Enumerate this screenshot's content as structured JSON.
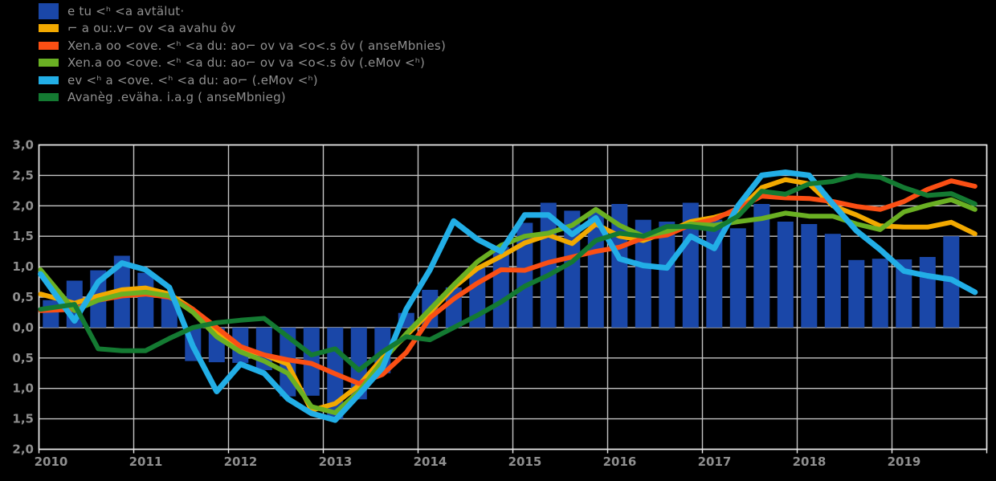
{
  "legend": {
    "items": [
      {
        "label": "e tu <ʰ <a avtälut·",
        "color": "#1a47a8",
        "swatch": "bar"
      },
      {
        "label": "⌐ a ou:.v⌐ ov <a avahu ôv",
        "color": "#f2a900",
        "swatch": "line"
      },
      {
        "label": "Xen.a oo <ove. <ʰ <a du: ao⌐ ov va <o<.s ôv ( anseMbnies)",
        "color": "#fb4f14",
        "swatch": "line"
      },
      {
        "label": "Xen.a oo <ove. <ʰ <a du: ao⌐ ov va <o<.s ôv (.eMov <ʰ)",
        "color": "#6ab023",
        "swatch": "line"
      },
      {
        "label": "ev <ʰ a <ove. <ʰ <a du: ao⌐ (.eMov <ʰ)",
        "color": "#22aee6",
        "swatch": "line"
      },
      {
        "label": "Avanèg .eväha. i.a.g ( anseMbnieg)",
        "color": "#147a32",
        "swatch": "line"
      }
    ]
  },
  "chart_data": {
    "type": "bar+line combo",
    "title": "",
    "xlabel": "",
    "ylabel": "",
    "ylim": [
      -2.0,
      3.0
    ],
    "ytick_step": 0.5,
    "ytick_labels": [
      "3,0",
      "2,5",
      "2,0",
      "1,5",
      "1,0",
      "0,5",
      "0,0",
      "0,5",
      "1,0",
      "1,5",
      "2,0"
    ],
    "x_year_labels": [
      "2010",
      "2011",
      "2012",
      "2013",
      "2014",
      "2015",
      "2016",
      "2017",
      "2018",
      "2019"
    ],
    "grid": true,
    "grid_color": "#c4c4c4",
    "frame_color": "#e9e9e9",
    "background": "#000000",
    "quarters": [
      "2010 Q1",
      "2010 Q2",
      "2010 Q3",
      "2010 Q4",
      "2011 Q1",
      "2011 Q2",
      "2011 Q3",
      "2011 Q4",
      "2012 Q1",
      "2012 Q2",
      "2012 Q3",
      "2012 Q4",
      "2013 Q1",
      "2013 Q2",
      "2013 Q3",
      "2013 Q4",
      "2014 Q1",
      "2014 Q2",
      "2014 Q3",
      "2014 Q4",
      "2015 Q1",
      "2015 Q2",
      "2015 Q3",
      "2015 Q4",
      "2016 Q1",
      "2016 Q2",
      "2016 Q3",
      "2016 Q4",
      "2017 Q1",
      "2017 Q2",
      "2017 Q3",
      "2017 Q4",
      "2018 Q1",
      "2018 Q2",
      "2018 Q3",
      "2018 Q4",
      "2019 Q1",
      "2019 Q2",
      "2019 Q3",
      "2019 Q4"
    ],
    "bars": {
      "name": "e tu <ʰ <a avtälut·",
      "color": "#1a47a8",
      "values": [
        0.45,
        0.77,
        0.94,
        1.18,
        0.9,
        0.5,
        -0.55,
        -0.57,
        -0.58,
        -0.7,
        -1.13,
        -1.12,
        -1.5,
        -1.18,
        -0.75,
        0.24,
        0.62,
        0.66,
        0.99,
        1.32,
        1.72,
        2.05,
        1.92,
        1.9,
        2.03,
        1.77,
        1.74,
        2.05,
        1.77,
        1.63,
        2.03,
        1.74,
        1.7,
        1.54,
        1.11,
        1.13,
        1.12,
        1.16,
        1.5,
        null
      ]
    },
    "series": [
      {
        "name": "⌐ a ou:.v⌐ ov <a avahu ôv",
        "color": "#f2a900",
        "width": 6,
        "values": [
          0.55,
          0.4,
          0.52,
          0.62,
          0.65,
          0.55,
          0.3,
          -0.1,
          -0.35,
          -0.45,
          -0.6,
          -1.36,
          -1.25,
          -0.95,
          -0.5,
          -0.13,
          0.25,
          0.66,
          0.97,
          1.17,
          1.39,
          1.52,
          1.38,
          1.7,
          1.5,
          1.43,
          1.57,
          1.74,
          1.81,
          1.92,
          2.3,
          2.43,
          2.36,
          2.0,
          1.85,
          1.67,
          1.65,
          1.65,
          1.73,
          1.54
        ]
      },
      {
        "name": "Xen.a oo <ove. <ʰ <a du: ao⌐ ov va <o<.s ôv ( anseMbnies)",
        "color": "#fb4f14",
        "width": 6,
        "values": [
          0.28,
          0.3,
          0.45,
          0.52,
          0.55,
          0.5,
          0.3,
          0.0,
          -0.31,
          -0.45,
          -0.53,
          -0.59,
          -0.76,
          -0.92,
          -0.77,
          -0.41,
          0.16,
          0.47,
          0.73,
          0.95,
          0.94,
          1.07,
          1.16,
          1.25,
          1.32,
          1.47,
          1.52,
          1.69,
          1.78,
          1.96,
          2.16,
          2.13,
          2.12,
          2.07,
          1.99,
          1.94,
          2.07,
          2.27,
          2.41,
          2.32
        ]
      },
      {
        "name": "Xen.a oo <ove. <ʰ <a du: ao⌐ ov va <o<.s ôv (.eMov <ʰ)",
        "color": "#6ab023",
        "width": 6,
        "values": [
          0.95,
          0.28,
          0.45,
          0.55,
          0.58,
          0.52,
          0.25,
          -0.15,
          -0.4,
          -0.55,
          -0.75,
          -1.3,
          -1.4,
          -1.05,
          -0.55,
          -0.1,
          0.3,
          0.7,
          1.08,
          1.35,
          1.5,
          1.55,
          1.68,
          1.94,
          1.68,
          1.5,
          1.58,
          1.7,
          1.68,
          1.74,
          1.79,
          1.88,
          1.83,
          1.83,
          1.7,
          1.61,
          1.9,
          2.01,
          2.1,
          1.94
        ]
      },
      {
        "name": "ev <ʰ a <ove. <ʰ <a du: ao⌐ (.eMov <ʰ)",
        "color": "#22aee6",
        "width": 7,
        "values": [
          0.88,
          0.11,
          0.75,
          1.06,
          0.95,
          0.66,
          -0.31,
          -1.05,
          -0.6,
          -0.75,
          -1.17,
          -1.41,
          -1.52,
          -1.1,
          -0.66,
          0.3,
          0.95,
          1.75,
          1.45,
          1.25,
          1.85,
          1.85,
          1.53,
          1.8,
          1.13,
          1.02,
          0.98,
          1.5,
          1.3,
          2.0,
          2.5,
          2.55,
          2.5,
          2.03,
          1.59,
          1.28,
          0.93,
          0.85,
          0.79,
          0.58
        ]
      },
      {
        "name": "Avanèg .eväha. i.a.g ( anseMbnieg)",
        "color": "#147a32",
        "width": 6,
        "values": [
          0.3,
          0.38,
          -0.35,
          -0.38,
          -0.38,
          -0.18,
          0.0,
          0.08,
          0.12,
          0.15,
          -0.15,
          -0.45,
          -0.35,
          -0.7,
          -0.4,
          -0.15,
          -0.2,
          0.0,
          0.2,
          0.42,
          0.68,
          0.86,
          1.08,
          1.43,
          1.55,
          1.5,
          1.66,
          1.66,
          1.61,
          1.83,
          2.24,
          2.19,
          2.36,
          2.4,
          2.5,
          2.47,
          2.3,
          2.17,
          2.2,
          2.03
        ]
      }
    ]
  }
}
